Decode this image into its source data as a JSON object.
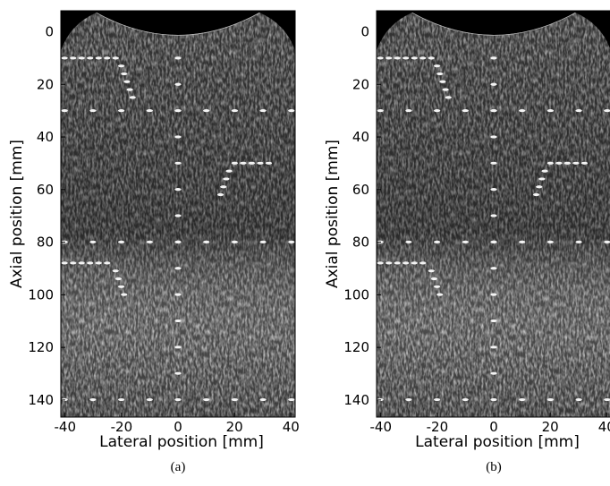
{
  "figure": {
    "panels": [
      {
        "label": "(a)",
        "xlabel": "Lateral position [mm]",
        "ylabel": "Axial position [mm]",
        "xlim": [
          -41.5,
          41.5
        ],
        "ylim": [
          -8,
          146.5
        ],
        "xticks": [
          -40,
          -20,
          0,
          20,
          40
        ],
        "yticks": [
          0,
          20,
          40,
          60,
          80,
          100,
          120,
          140
        ]
      },
      {
        "label": "(b)",
        "xlabel": "Lateral position [mm]",
        "ylabel": "Axial position [mm]",
        "xlim": [
          -41.5,
          41.5
        ],
        "ylim": [
          -8,
          146.5
        ],
        "xticks": [
          -40,
          -20,
          0,
          20,
          40
        ],
        "yticks": [
          0,
          20,
          40,
          60,
          80,
          100,
          120,
          140
        ]
      }
    ]
  }
}
